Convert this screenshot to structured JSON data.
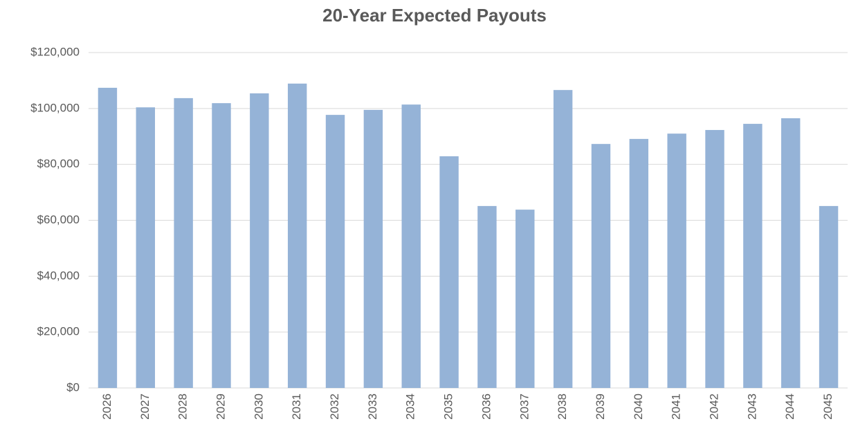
{
  "chart_data": {
    "type": "bar",
    "title": "20-Year Expected Payouts",
    "categories": [
      "2026",
      "2027",
      "2028",
      "2029",
      "2030",
      "2031",
      "2032",
      "2033",
      "2034",
      "2035",
      "2036",
      "2037",
      "2038",
      "2039",
      "2040",
      "2041",
      "2042",
      "2043",
      "2044",
      "2045"
    ],
    "values": [
      107400,
      100400,
      103700,
      101900,
      105400,
      108900,
      97700,
      99500,
      101400,
      82900,
      65100,
      63800,
      106600,
      87300,
      89100,
      91000,
      92300,
      94500,
      96500,
      65100
    ],
    "color": "#95b3d7",
    "ylim": [
      0,
      120000
    ],
    "yticks": [
      {
        "value": 0,
        "label": "$0"
      },
      {
        "value": 20000,
        "label": "$20,000"
      },
      {
        "value": 40000,
        "label": "$40,000"
      },
      {
        "value": 60000,
        "label": "$60,000"
      },
      {
        "value": 80000,
        "label": "$80,000"
      },
      {
        "value": 100000,
        "label": "$100,000"
      },
      {
        "value": 120000,
        "label": "$120,000"
      }
    ],
    "grid": true
  }
}
